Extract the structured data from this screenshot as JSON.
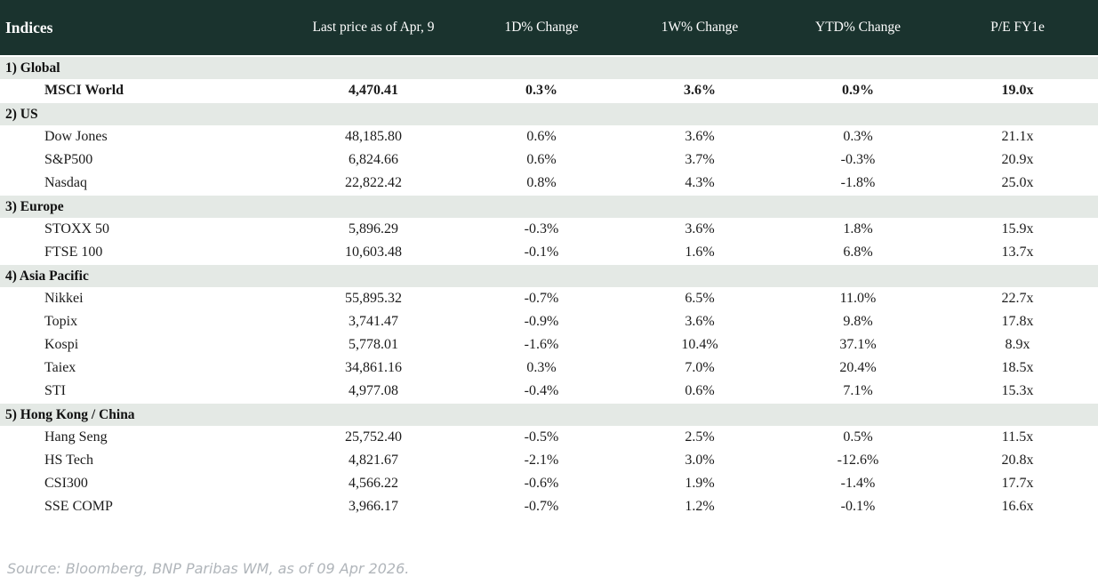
{
  "chart_data": {
    "type": "table",
    "title": "Indices",
    "columns": [
      "Indices",
      "Last price as of Apr, 9",
      "1D% Change",
      "1W% Change",
      "YTD% Change",
      "P/E FY1e"
    ],
    "sections": [
      {
        "label": "1) Global",
        "rows": [
          {
            "name": "MSCI World",
            "last_price": "4,470.41",
            "d1": "0.3%",
            "w1": "3.6%",
            "ytd": "0.9%",
            "pe": "19.0x",
            "emphasis": true
          }
        ]
      },
      {
        "label": "2) US",
        "rows": [
          {
            "name": "Dow Jones",
            "last_price": "48,185.80",
            "d1": "0.6%",
            "w1": "3.6%",
            "ytd": "0.3%",
            "pe": "21.1x"
          },
          {
            "name": "S&P500",
            "last_price": "6,824.66",
            "d1": "0.6%",
            "w1": "3.7%",
            "ytd": "-0.3%",
            "pe": "20.9x"
          },
          {
            "name": "Nasdaq",
            "last_price": "22,822.42",
            "d1": "0.8%",
            "w1": "4.3%",
            "ytd": "-1.8%",
            "pe": "25.0x"
          }
        ]
      },
      {
        "label": "3) Europe",
        "rows": [
          {
            "name": "STOXX 50",
            "last_price": "5,896.29",
            "d1": "-0.3%",
            "w1": "3.6%",
            "ytd": "1.8%",
            "pe": "15.9x"
          },
          {
            "name": "FTSE 100",
            "last_price": "10,603.48",
            "d1": "-0.1%",
            "w1": "1.6%",
            "ytd": "6.8%",
            "pe": "13.7x"
          }
        ]
      },
      {
        "label": "4) Asia Pacific",
        "rows": [
          {
            "name": "Nikkei",
            "last_price": "55,895.32",
            "d1": "-0.7%",
            "w1": "6.5%",
            "ytd": "11.0%",
            "pe": "22.7x"
          },
          {
            "name": "Topix",
            "last_price": "3,741.47",
            "d1": "-0.9%",
            "w1": "3.6%",
            "ytd": "9.8%",
            "pe": "17.8x"
          },
          {
            "name": "Kospi",
            "last_price": "5,778.01",
            "d1": "-1.6%",
            "w1": "10.4%",
            "ytd": "37.1%",
            "pe": "8.9x"
          },
          {
            "name": "Taiex",
            "last_price": "34,861.16",
            "d1": "0.3%",
            "w1": "7.0%",
            "ytd": "20.4%",
            "pe": "18.5x"
          },
          {
            "name": "STI",
            "last_price": "4,977.08",
            "d1": "-0.4%",
            "w1": "0.6%",
            "ytd": "7.1%",
            "pe": "15.3x"
          }
        ]
      },
      {
        "label": "5) Hong Kong / China",
        "rows": [
          {
            "name": "Hang Seng",
            "last_price": "25,752.40",
            "d1": "-0.5%",
            "w1": "2.5%",
            "ytd": "0.5%",
            "pe": "11.5x"
          },
          {
            "name": "HS Tech",
            "last_price": "4,821.67",
            "d1": "-2.1%",
            "w1": "3.0%",
            "ytd": "-12.6%",
            "pe": "20.8x"
          },
          {
            "name": "CSI300",
            "last_price": "4,566.22",
            "d1": "-0.6%",
            "w1": "1.9%",
            "ytd": "-1.4%",
            "pe": "17.7x"
          },
          {
            "name": "SSE COMP",
            "last_price": "3,966.17",
            "d1": "-0.7%",
            "w1": "1.2%",
            "ytd": "-0.1%",
            "pe": "16.6x"
          }
        ]
      }
    ]
  },
  "header": {
    "col_indices": "Indices",
    "col_last_price": "Last price as of Apr, 9",
    "col_1d": "1D% Change",
    "col_1w": "1W% Change",
    "col_ytd": "YTD% Change",
    "col_pe": "P/E FY1e"
  },
  "footer": {
    "source": "Source: Bloomberg, BNP Paribas WM, as of 09 Apr 2026."
  },
  "colors": {
    "header_bg": "#1a332e",
    "header_text": "#ffffff",
    "section_bg": "#e4e9e5",
    "positive": "#008000",
    "negative": "#c8102e",
    "body_text": "#1b1b1b",
    "source_text": "#b0b5ba"
  }
}
